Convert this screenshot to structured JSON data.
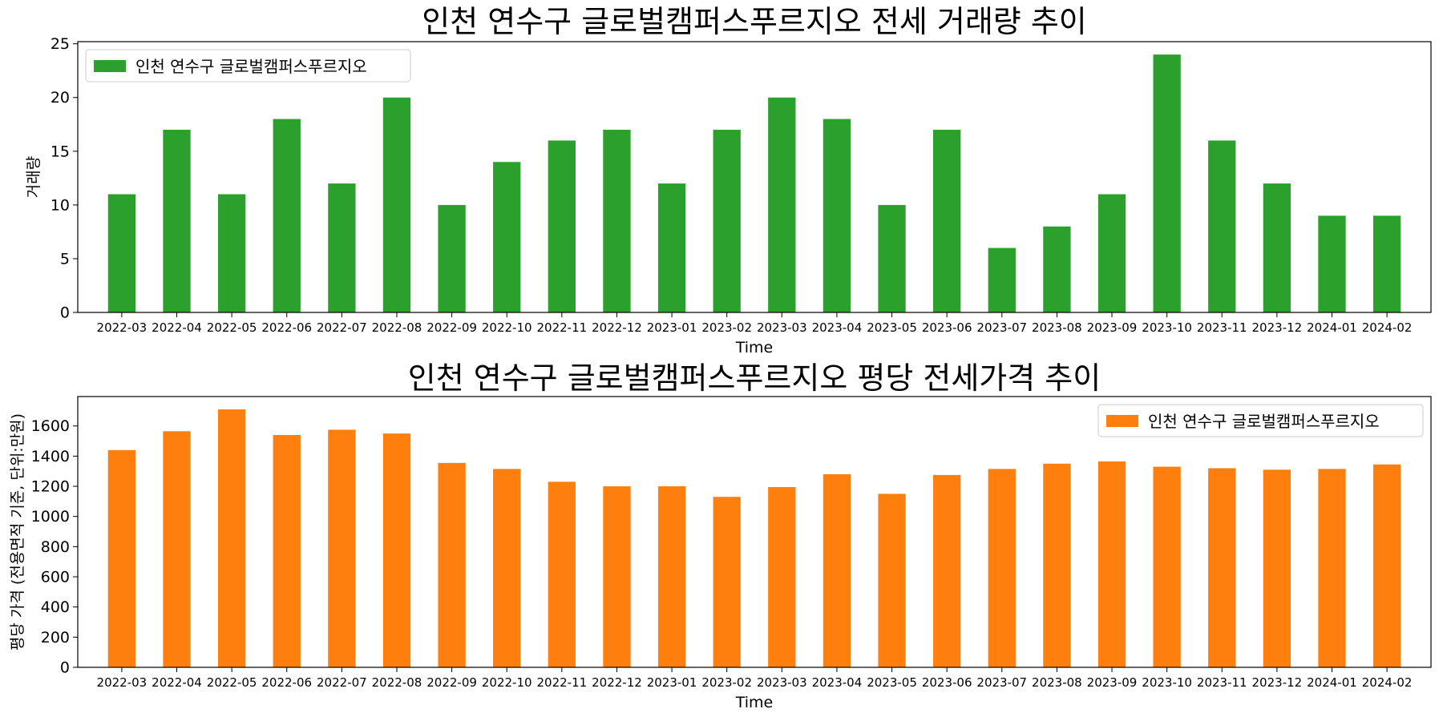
{
  "chart_data": [
    {
      "type": "bar",
      "title": "인천 연수구 글로벌캠퍼스푸르지오 전세 거래량 추이",
      "xlabel": "Time",
      "ylabel": "거래량",
      "ylim": [
        0,
        25.2
      ],
      "yticks": [
        0,
        5,
        10,
        15,
        20,
        25
      ],
      "legend_position": "top-left",
      "grid": false,
      "categories": [
        "2022-03",
        "2022-04",
        "2022-05",
        "2022-06",
        "2022-07",
        "2022-08",
        "2022-09",
        "2022-10",
        "2022-11",
        "2022-12",
        "2023-01",
        "2023-02",
        "2023-03",
        "2023-04",
        "2023-05",
        "2023-06",
        "2023-07",
        "2023-08",
        "2023-09",
        "2023-10",
        "2023-11",
        "2023-12",
        "2024-01",
        "2024-02"
      ],
      "series": [
        {
          "name": "인천 연수구 글로벌캠퍼스푸르지오",
          "color": "#2ca02c",
          "values": [
            11,
            17,
            11,
            18,
            12,
            20,
            10,
            14,
            16,
            17,
            12,
            17,
            20,
            18,
            10,
            17,
            6,
            8,
            11,
            24,
            16,
            12,
            9,
            9
          ]
        }
      ]
    },
    {
      "type": "bar",
      "title": "인천 연수구 글로벌캠퍼스푸르지오 평당 전세가격 추이",
      "xlabel": "Time",
      "ylabel": "평당 가격 (전용면적 기준, 단위:만원)",
      "ylim": [
        0,
        1795
      ],
      "yticks": [
        0,
        200,
        400,
        600,
        800,
        1000,
        1200,
        1400,
        1600
      ],
      "legend_position": "top-right",
      "grid": false,
      "categories": [
        "2022-03",
        "2022-04",
        "2022-05",
        "2022-06",
        "2022-07",
        "2022-08",
        "2022-09",
        "2022-10",
        "2022-11",
        "2022-12",
        "2023-01",
        "2023-02",
        "2023-03",
        "2023-04",
        "2023-05",
        "2023-06",
        "2023-07",
        "2023-08",
        "2023-09",
        "2023-10",
        "2023-11",
        "2023-12",
        "2024-01",
        "2024-02"
      ],
      "series": [
        {
          "name": "인천 연수구 글로벌캠퍼스푸르지오",
          "color": "#ff7f0e",
          "values": [
            1440,
            1565,
            1710,
            1540,
            1575,
            1550,
            1355,
            1315,
            1230,
            1200,
            1200,
            1130,
            1195,
            1280,
            1150,
            1275,
            1315,
            1350,
            1365,
            1330,
            1320,
            1310,
            1315,
            1345
          ]
        }
      ]
    }
  ]
}
